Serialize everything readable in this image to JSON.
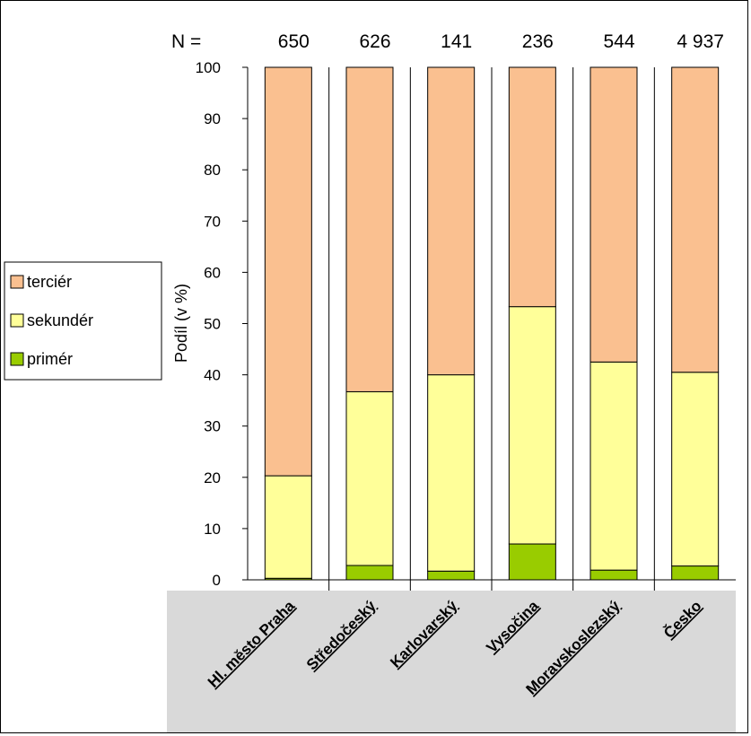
{
  "chart_data": {
    "type": "bar",
    "stacked": true,
    "categories": [
      "Hl. město Praha",
      "Středočeský",
      "Karlovarský",
      "Vysočina",
      "Moravskoslezský",
      "Česko"
    ],
    "n_label": "N =",
    "n_values": [
      "650",
      "626",
      "141",
      "236",
      "544",
      "4 937"
    ],
    "series": [
      {
        "name": "primér",
        "color": "#99cc00",
        "values": [
          0.3,
          2.8,
          1.7,
          7.0,
          1.9,
          2.7
        ]
      },
      {
        "name": "sekundér",
        "color": "#ffff99",
        "values": [
          20.0,
          33.9,
          38.3,
          46.3,
          40.6,
          37.8
        ]
      },
      {
        "name": "terciér",
        "color": "#fac090",
        "values": [
          79.7,
          63.3,
          60.0,
          46.7,
          57.5,
          59.5
        ]
      }
    ],
    "legend_order": [
      "terciér",
      "sekundér",
      "primér"
    ],
    "legend_position": "left",
    "ylabel": "Podíl (v %)",
    "xlabel": "",
    "title": "",
    "ylim": [
      0,
      100
    ],
    "yticks": [
      "0",
      "10",
      "20",
      "30",
      "40",
      "50",
      "60",
      "70",
      "80",
      "90",
      "100"
    ],
    "grid": "vertical",
    "category_band_color": "#d9d9d9"
  }
}
